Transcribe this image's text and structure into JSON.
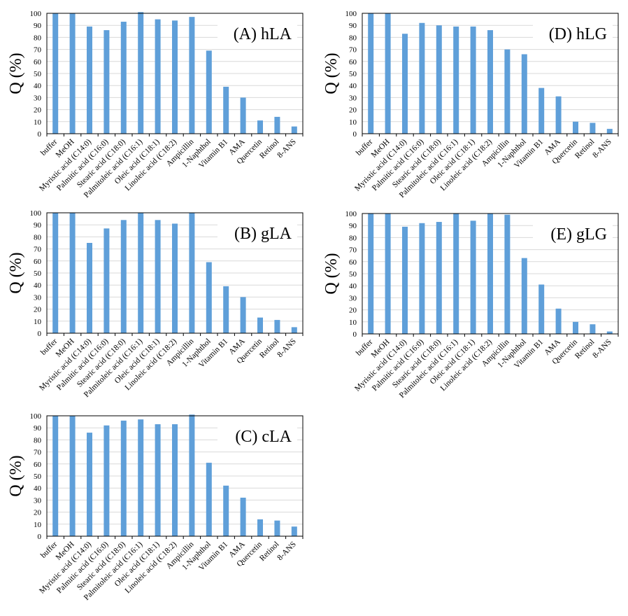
{
  "chart_data": [
    {
      "type": "bar",
      "title": "(A) hLA",
      "ylabel": "Q (%)",
      "ylim": [
        0,
        100
      ],
      "yticks": [
        0,
        10,
        20,
        30,
        40,
        50,
        60,
        70,
        80,
        90,
        100
      ],
      "grid": true,
      "categories": [
        "buffer",
        "MeOH",
        "Myristic acid (C14:0)",
        "Palmitic acid (C16:0)",
        "Stearic acid (C18:0)",
        "Palmitoleic acid (C16:1)",
        "Oleic acid (C18:1)",
        "Linoleic acid (C18:2)",
        "Ampicillin",
        "1-Naphthol",
        "Vitamin B1",
        "AMA",
        "Quercetin",
        "Retinol",
        "8-ANS"
      ],
      "values": [
        100,
        100,
        89,
        86,
        93,
        101,
        95,
        94,
        97,
        69,
        39,
        30,
        11,
        14,
        6
      ]
    },
    {
      "type": "bar",
      "title": "(D) hLG",
      "ylabel": "Q (%)",
      "ylim": [
        0,
        100
      ],
      "yticks": [
        0,
        10,
        20,
        30,
        40,
        50,
        60,
        70,
        80,
        90,
        100
      ],
      "grid": true,
      "categories": [
        "buffer",
        "MeOH",
        "Myristic acid (C14:0)",
        "Palmitic acid (C16:0)",
        "Stearic acid (C18:0)",
        "Palmitoleic acid (C16:1)",
        "Oleic acid (C18:1)",
        "Linoleic acid (C18:2)",
        "Ampicillin",
        "1-Naphthol",
        "Vitamin B1",
        "AMA",
        "Quercetin",
        "Retinol",
        "8-ANS"
      ],
      "values": [
        100,
        100,
        83,
        92,
        90,
        89,
        89,
        86,
        70,
        66,
        38,
        31,
        10,
        9,
        4
      ]
    },
    {
      "type": "bar",
      "title": "(B) gLA",
      "ylabel": "Q (%)",
      "ylim": [
        0,
        100
      ],
      "yticks": [
        0,
        10,
        20,
        30,
        40,
        50,
        60,
        70,
        80,
        90,
        100
      ],
      "grid": true,
      "categories": [
        "buffer",
        "MeOH",
        "Myristic acid (C14:0)",
        "Palmitic acid (C16:0)",
        "Stearic acid (C18:0)",
        "Palmitoleic acid (C16:1)",
        "Oleic acid (C18:1)",
        "Linoleic acid (C18:2)",
        "Ampicillin",
        "1-Naphthol",
        "Vitamin B1",
        "AMA",
        "Quercetin",
        "Retinol",
        "8-ANS"
      ],
      "values": [
        100,
        100,
        75,
        87,
        94,
        100,
        94,
        91,
        100,
        59,
        39,
        30,
        13,
        11,
        5
      ]
    },
    {
      "type": "bar",
      "title": "(E) gLG",
      "ylabel": "Q (%)",
      "ylim": [
        0,
        100
      ],
      "yticks": [
        0,
        10,
        20,
        30,
        40,
        50,
        60,
        70,
        80,
        90,
        100
      ],
      "grid": true,
      "categories": [
        "buffer",
        "MeOH",
        "Myristic acid (C14:0)",
        "Palmitic acid (C16:0)",
        "Stearic acid (C18:0)",
        "Palmitoleic acid (C16:1)",
        "Oleic acid (C18:1)",
        "Linoleic acid (C18:2)",
        "Ampicillin",
        "1-Naphthol",
        "Vitamin B1",
        "AMA",
        "Quercetin",
        "Retinol",
        "8-ANS"
      ],
      "values": [
        100,
        100,
        89,
        92,
        93,
        100,
        94,
        100,
        99,
        63,
        41,
        21,
        10,
        8,
        2
      ]
    },
    {
      "type": "bar",
      "title": "(C) cLA",
      "ylabel": "Q (%)",
      "ylim": [
        0,
        100
      ],
      "yticks": [
        0,
        10,
        20,
        30,
        40,
        50,
        60,
        70,
        80,
        90,
        100
      ],
      "grid": true,
      "categories": [
        "buffer",
        "MeOH",
        "Myristic acid (C14:0)",
        "Palmitic acid (C16:0)",
        "Stearic acid (C18:0)",
        "Palmitoleic acid (C16:1)",
        "Oleic acid (C18:1)",
        "Linoleic acid (C18:2)",
        "Ampicillin",
        "1-Naphthol",
        "Vitamin B1",
        "AMA",
        "Quercetin",
        "Retinol",
        "8-ANS"
      ],
      "values": [
        100,
        100,
        86,
        92,
        96,
        97,
        93,
        93,
        101,
        61,
        42,
        32,
        14,
        13,
        8
      ]
    }
  ],
  "colors": {
    "bar": "#5f9fd9",
    "grid": "#d9d9d9",
    "axis": "#000000"
  }
}
